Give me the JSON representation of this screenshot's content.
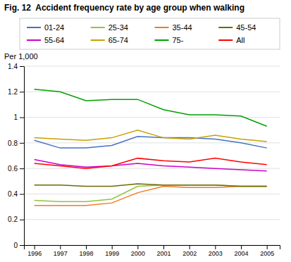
{
  "chart_data": {
    "type": "line",
    "title": "Fig. 12  Accident frequency rate by age group when walking",
    "ylabel": "Per 1,000",
    "x": [
      1996,
      1997,
      1998,
      1999,
      2000,
      2001,
      2002,
      2003,
      2004,
      2005
    ],
    "series": [
      {
        "name": "01-24",
        "color": "#4472C4",
        "values": [
          0.82,
          0.76,
          0.76,
          0.78,
          0.85,
          0.84,
          0.84,
          0.83,
          0.8,
          0.76
        ]
      },
      {
        "name": "25-34",
        "color": "#8DC63F",
        "values": [
          0.35,
          0.34,
          0.34,
          0.36,
          0.46,
          0.47,
          0.47,
          0.47,
          0.46,
          0.46
        ]
      },
      {
        "name": "35-44",
        "color": "#F47920",
        "values": [
          0.31,
          0.31,
          0.31,
          0.33,
          0.41,
          0.46,
          0.45,
          0.45,
          0.46,
          0.46
        ]
      },
      {
        "name": "45-54",
        "color": "#6B6B00",
        "values": [
          0.47,
          0.47,
          0.46,
          0.46,
          0.48,
          0.47,
          0.47,
          0.47,
          0.46,
          0.46
        ]
      },
      {
        "name": "55-64",
        "color": "#CC00CC",
        "values": [
          0.67,
          0.63,
          0.61,
          0.62,
          0.64,
          0.62,
          0.61,
          0.6,
          0.59,
          0.58
        ]
      },
      {
        "name": "65-74",
        "color": "#C8A000",
        "values": [
          0.84,
          0.83,
          0.82,
          0.84,
          0.9,
          0.84,
          0.83,
          0.86,
          0.83,
          0.81
        ]
      },
      {
        "name": "75-",
        "color": "#00A000",
        "values": [
          1.22,
          1.2,
          1.13,
          1.14,
          1.14,
          1.06,
          1.02,
          1.02,
          1.01,
          0.93
        ]
      },
      {
        "name": "All",
        "color": "#FF0000",
        "values": [
          0.64,
          0.62,
          0.6,
          0.62,
          0.68,
          0.66,
          0.65,
          0.68,
          0.65,
          0.63
        ]
      }
    ],
    "xlim": [
      1995.6,
      2005.5
    ],
    "xticks": [
      1996,
      1997,
      1998,
      1999,
      2000,
      2001,
      2002,
      2003,
      2004,
      2005
    ],
    "ylim": [
      0,
      1.4
    ],
    "yticks": [
      0,
      0.2,
      0.4,
      0.6,
      0.8,
      1.0,
      1.2,
      1.4
    ],
    "grid": true,
    "legend": "top"
  }
}
